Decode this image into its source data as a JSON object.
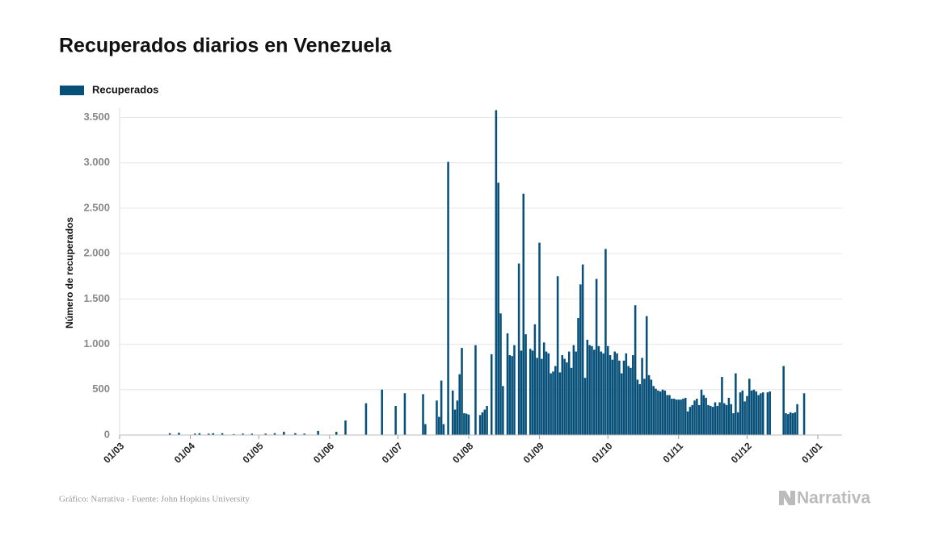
{
  "chart_data": {
    "type": "bar",
    "title": "Recuperados diarios en Venezuela",
    "ylabel": "Número de recuperados",
    "source": "Gráfico: Narrativa - Fuente: John Hopkins University",
    "logo": "Narrativa",
    "legend": "top-left",
    "grid": true,
    "xlim": [
      "01/03",
      "01/01"
    ],
    "xticks": [
      "01/03",
      "01/04",
      "01/05",
      "01/06",
      "01/07",
      "01/08",
      "01/09",
      "01/10",
      "01/11",
      "01/12",
      "01/01"
    ],
    "ylim": [
      0,
      3700
    ],
    "yticks": [
      0,
      500,
      {
        "value": 1000,
        "label": "1.000"
      },
      {
        "value": 1500,
        "label": "1.500"
      },
      {
        "value": 2000,
        "label": "2.000"
      },
      {
        "value": 2500,
        "label": "2.500"
      },
      {
        "value": 3000,
        "label": "3.000"
      },
      {
        "value": 3500,
        "label": "3.500"
      }
    ],
    "x": [
      "23/03",
      "27/03",
      "03/04",
      "05/04",
      "09/04",
      "11/04",
      "15/04",
      "20/04",
      "24/04",
      "28/04",
      "04/05",
      "08/05",
      "12/05",
      "17/05",
      "21/05",
      "27/05",
      "04/06",
      "08/06",
      "17/06",
      "24/06",
      "30/06",
      "04/07",
      "12/07",
      "13/07",
      "18/07",
      "19/07",
      "20/07",
      "21/07",
      "23/07",
      "25/07",
      "26/07",
      "27/07",
      "28/07",
      "29/07",
      "30/07",
      "31/07",
      "01/08",
      "04/08",
      "06/08",
      "07/08",
      "08/08",
      "09/08",
      "11/08",
      "13/08",
      "14/08",
      "15/08",
      "16/08",
      "18/08",
      "19/08",
      "20/08",
      "21/08",
      "23/08",
      "24/08",
      "25/08",
      "26/08",
      "28/08",
      "29/08",
      "30/08",
      "31/08",
      "01/09",
      "02/09",
      "03/09",
      "04/09",
      "05/09",
      "06/09",
      "07/09",
      "08/09",
      "09/09",
      "10/09",
      "11/09",
      "12/09",
      "13/09",
      "14/09",
      "15/09",
      "16/09",
      "17/09",
      "18/09",
      "19/09",
      "20/09",
      "21/09",
      "22/09",
      "23/09",
      "24/09",
      "25/09",
      "26/09",
      "27/09",
      "28/09",
      "29/09",
      "30/09",
      "01/10",
      "02/10",
      "03/10",
      "04/10",
      "05/10",
      "06/10",
      "07/10",
      "08/10",
      "09/10",
      "10/10",
      "11/10",
      "12/10",
      "13/10",
      "14/10",
      "15/10",
      "16/10",
      "17/10",
      "18/10",
      "19/10",
      "20/10",
      "21/10",
      "22/10",
      "23/10",
      "24/10",
      "25/10",
      "26/10",
      "27/10",
      "28/10",
      "29/10",
      "30/10",
      "31/10",
      "01/11",
      "02/11",
      "03/11",
      "04/11",
      "05/11",
      "06/11",
      "07/11",
      "08/11",
      "09/11",
      "10/11",
      "11/11",
      "12/11",
      "13/11",
      "14/11",
      "15/11",
      "16/11",
      "17/11",
      "18/11",
      "19/11",
      "20/11",
      "21/11",
      "22/11",
      "23/11",
      "24/11",
      "25/11",
      "26/11",
      "27/11",
      "28/11",
      "29/11",
      "30/11",
      "01/12",
      "02/12",
      "03/12",
      "04/12",
      "05/12",
      "06/12",
      "07/12",
      "08/12",
      "10/12",
      "11/12",
      "17/12",
      "18/12",
      "19/12",
      "20/12",
      "21/12",
      "22/12",
      "23/12",
      "26/12"
    ],
    "series": [
      {
        "name": "Recuperados",
        "color": "#07507a",
        "values": [
          20,
          25,
          15,
          20,
          15,
          20,
          20,
          10,
          15,
          15,
          15,
          20,
          35,
          20,
          15,
          45,
          35,
          160,
          350,
          500,
          320,
          460,
          450,
          120,
          380,
          200,
          600,
          120,
          3010,
          490,
          280,
          380,
          670,
          960,
          240,
          235,
          225,
          990,
          220,
          250,
          280,
          320,
          890,
          3580,
          2780,
          1340,
          540,
          1120,
          880,
          870,
          990,
          1890,
          930,
          2660,
          1110,
          950,
          930,
          1220,
          850,
          2120,
          840,
          1020,
          920,
          900,
          680,
          700,
          760,
          1750,
          690,
          880,
          840,
          800,
          920,
          740,
          990,
          920,
          1290,
          1660,
          1880,
          630,
          1050,
          990,
          980,
          940,
          1720,
          980,
          920,
          900,
          2050,
          980,
          880,
          830,
          920,
          900,
          820,
          680,
          820,
          900,
          760,
          740,
          880,
          1430,
          610,
          560,
          850,
          620,
          1310,
          660,
          610,
          540,
          510,
          490,
          480,
          500,
          490,
          440,
          440,
          400,
          400,
          390,
          390,
          390,
          400,
          410,
          260,
          310,
          330,
          380,
          400,
          330,
          500,
          440,
          410,
          330,
          320,
          310,
          360,
          320,
          360,
          640,
          350,
          330,
          410,
          340,
          240,
          680,
          250,
          470,
          490,
          370,
          430,
          620,
          490,
          500,
          480,
          440,
          460,
          470,
          470,
          480,
          760,
          240,
          230,
          250,
          240,
          250,
          340,
          460
        ]
      }
    ]
  }
}
